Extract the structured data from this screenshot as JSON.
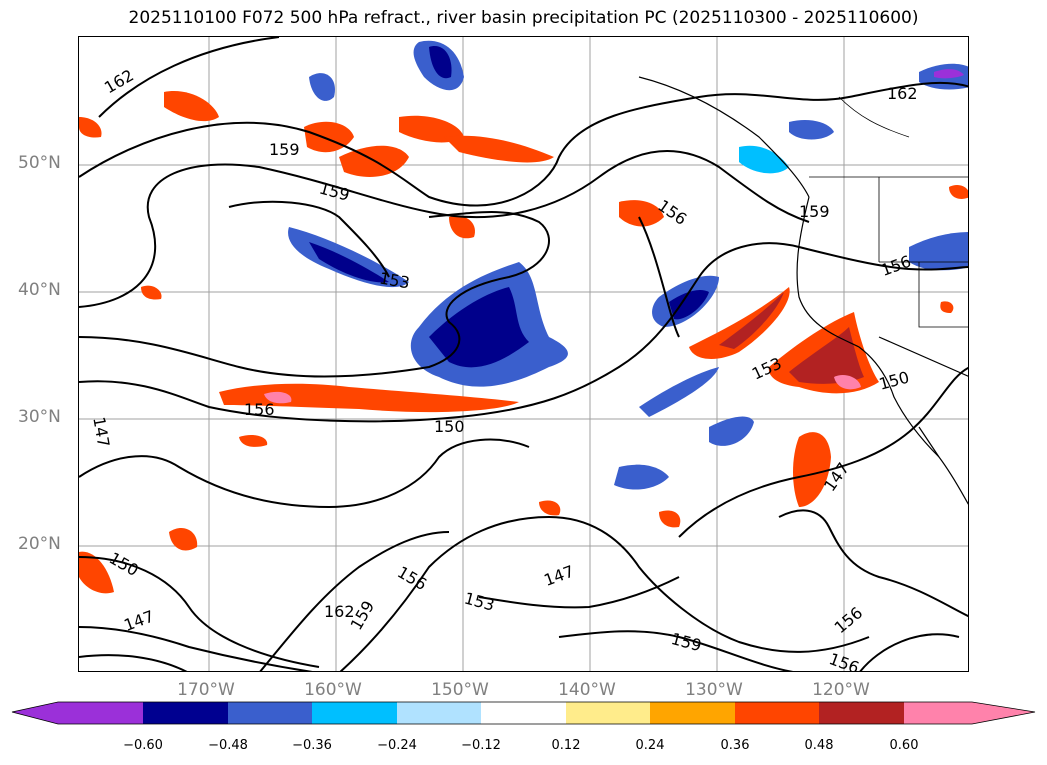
{
  "title": "2025110100 F072 500 hPa refract., river basin precipitation PC (2025110300 - 2025110600)",
  "lat_labels": [
    "50°N",
    "40°N",
    "30°N",
    "20°N"
  ],
  "lon_labels": [
    "170°W",
    "160°W",
    "150°W",
    "140°W",
    "130°W",
    "120°W"
  ],
  "contour_labels": [
    "162",
    "162",
    "159",
    "159",
    "159",
    "159",
    "156",
    "156",
    "156",
    "156",
    "153",
    "153",
    "153",
    "150",
    "150",
    "150",
    "147",
    "147",
    "147",
    "147",
    "159",
    "162",
    "156",
    "156"
  ],
  "colorbar": {
    "ticks": [
      "−0.60",
      "−0.48",
      "−0.36",
      "−0.24",
      "−0.12",
      "0.12",
      "0.24",
      "0.36",
      "0.48",
      "0.60"
    ],
    "colors": [
      "#9b30d9",
      "#000090",
      "#3a5fcd",
      "#00bfff",
      "#b0e2ff",
      "#ffffff",
      "#ffec8b",
      "#ffa500",
      "#ff4500",
      "#b22222",
      "#ff82ab",
      "#ff82ab"
    ]
  },
  "palette": {
    "neg_strong": "#00008b",
    "neg_mid": "#3a5fcd",
    "neg_light": "#00bfff",
    "pos_light": "#ffec8b",
    "pos_mid": "#ffa500",
    "pos_strong": "#ff4500",
    "pos_dark": "#b22222",
    "pos_max": "#ff82ab"
  }
}
